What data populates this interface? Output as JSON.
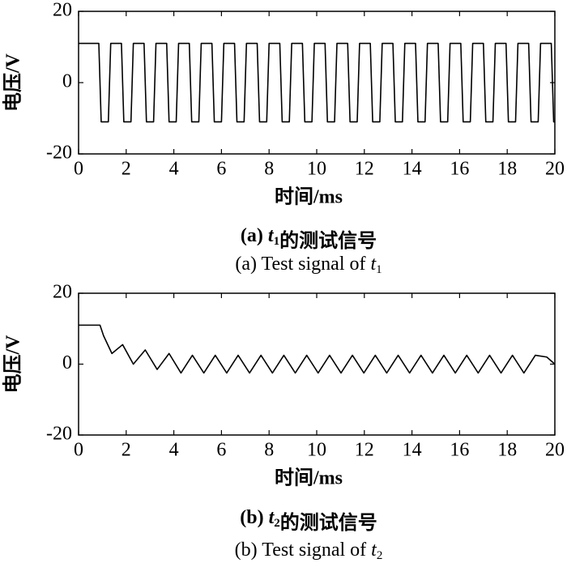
{
  "chart_data": [
    {
      "type": "line",
      "ylabel": "电压/V",
      "xlabel": "时间/ms",
      "caption_zh": [
        "(a) ",
        "t",
        "1",
        "的测试信号"
      ],
      "caption_en": [
        "(a) Test signal of ",
        "t",
        "1"
      ],
      "xlim": [
        0,
        20
      ],
      "xticks": [
        0,
        2,
        4,
        6,
        8,
        10,
        12,
        14,
        16,
        18,
        20
      ],
      "ylim": [
        -20,
        20
      ],
      "yticks": [
        -20,
        0,
        20
      ],
      "color": "#000000",
      "x": [
        0,
        0.85,
        0.95,
        1.25,
        1.35,
        1.8,
        1.9,
        2.2,
        2.3,
        2.75,
        2.85,
        3.15,
        3.25,
        3.7,
        3.8,
        4.1,
        4.2,
        4.65,
        4.75,
        5.05,
        5.15,
        5.6,
        5.7,
        6,
        6.1,
        6.55,
        6.65,
        6.95,
        7.05,
        7.5,
        7.6,
        7.9,
        8,
        8.45,
        8.55,
        8.85,
        8.95,
        9.4,
        9.5,
        9.8,
        9.9,
        10.35,
        10.45,
        10.75,
        10.85,
        11.3,
        11.4,
        11.7,
        11.8,
        12.25,
        12.35,
        12.65,
        12.75,
        13.2,
        13.3,
        13.6,
        13.7,
        14.15,
        14.25,
        14.55,
        14.65,
        15.1,
        15.2,
        15.5,
        15.6,
        16.05,
        16.15,
        16.45,
        16.55,
        17,
        17.1,
        17.4,
        17.5,
        17.95,
        18.05,
        18.35,
        18.45,
        18.9,
        19,
        19.3,
        19.4,
        19.85,
        19.95,
        20
      ],
      "values": [
        11,
        11,
        -11,
        -11,
        11,
        11,
        -11,
        -11,
        11,
        11,
        -11,
        -11,
        11,
        11,
        -11,
        -11,
        11,
        11,
        -11,
        -11,
        11,
        11,
        -11,
        -11,
        11,
        11,
        -11,
        -11,
        11,
        11,
        -11,
        -11,
        11,
        11,
        -11,
        -11,
        11,
        11,
        -11,
        -11,
        11,
        11,
        -11,
        -11,
        11,
        11,
        -11,
        -11,
        11,
        11,
        -11,
        -11,
        11,
        11,
        -11,
        -11,
        11,
        11,
        -11,
        -11,
        11,
        11,
        -11,
        -11,
        11,
        11,
        -11,
        -11,
        11,
        11,
        -11,
        -11,
        11,
        11,
        -11,
        -11,
        11,
        11,
        -11,
        -11,
        11,
        11,
        -11,
        -11
      ]
    },
    {
      "type": "line",
      "ylabel": "电压/V",
      "xlabel": "时间/ms",
      "caption_zh": [
        "(b) ",
        "t",
        "2",
        "的测试信号"
      ],
      "caption_en": [
        "(b) Test signal of ",
        "t",
        "2"
      ],
      "xlim": [
        0,
        20
      ],
      "xticks": [
        0,
        2,
        4,
        6,
        8,
        10,
        12,
        14,
        16,
        18,
        20
      ],
      "ylim": [
        -20,
        20
      ],
      "yticks": [
        -20,
        0,
        20
      ],
      "color": "#000000",
      "x": [
        0,
        0.9,
        1.05,
        1.4,
        1.85,
        2.3,
        2.8,
        3.3,
        3.8,
        4.3,
        4.78,
        5.26,
        5.74,
        6.22,
        6.7,
        7.18,
        7.66,
        8.14,
        8.62,
        9.1,
        9.58,
        10.06,
        10.54,
        11.02,
        11.5,
        11.98,
        12.46,
        12.94,
        13.42,
        13.9,
        14.38,
        14.86,
        15.34,
        15.82,
        16.3,
        16.78,
        17.26,
        17.74,
        18.22,
        18.7,
        19.18,
        19.66,
        20
      ],
      "values": [
        11,
        11,
        8,
        3,
        5.5,
        0,
        4,
        -1.5,
        3,
        -2.5,
        2.5,
        -2.5,
        2.5,
        -2.5,
        2.5,
        -2.5,
        2.5,
        -2.5,
        2.5,
        -2.5,
        2.5,
        -2.5,
        2.5,
        -2.5,
        2.5,
        -2.5,
        2.5,
        -2.5,
        2.5,
        -2.5,
        2.5,
        -2.5,
        2.5,
        -2.5,
        2.5,
        -2.5,
        2.5,
        -2.5,
        2.5,
        -2.5,
        2.5,
        2,
        0
      ]
    }
  ]
}
